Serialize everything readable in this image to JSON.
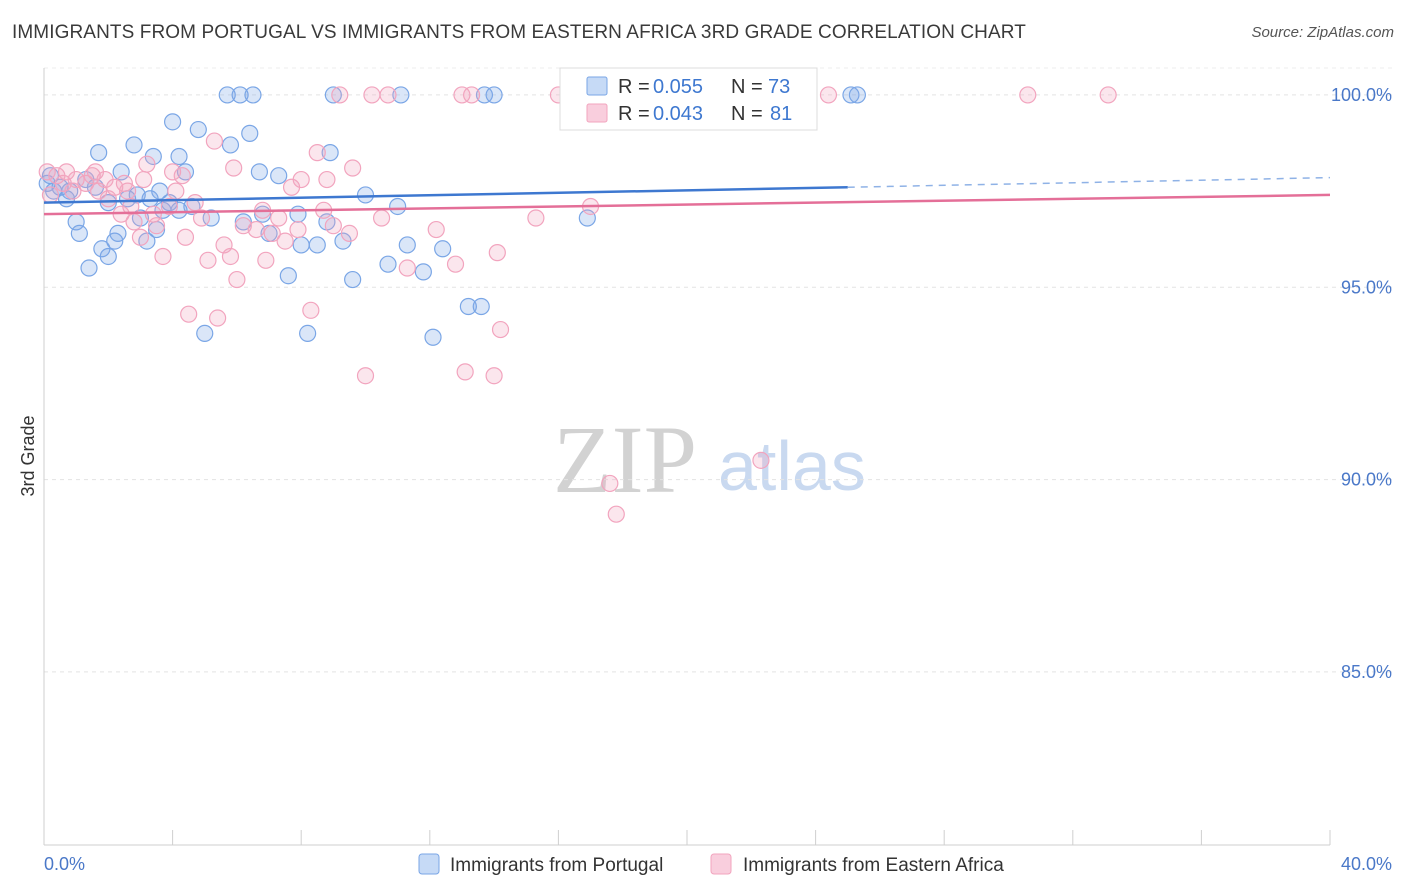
{
  "title": "IMMIGRANTS FROM PORTUGAL VS IMMIGRANTS FROM EASTERN AFRICA 3RD GRADE CORRELATION CHART",
  "source": "Source: ZipAtlas.com",
  "watermark": {
    "zip": "ZIP",
    "atlas": "atlas"
  },
  "legend": {
    "r_label": "R =",
    "n_label": "N =",
    "items": [
      {
        "name": "Immigrants from Portugal",
        "r": "0.055",
        "n": "73",
        "color": "#7aa6e6",
        "line_color": "#3e78d0"
      },
      {
        "name": "Immigrants from Eastern Africa",
        "r": "0.043",
        "n": "81",
        "color": "#f2a4be",
        "line_color": "#e46f98"
      }
    ]
  },
  "chart_data": {
    "type": "scatter",
    "title": "IMMIGRANTS FROM PORTUGAL VS IMMIGRANTS FROM EASTERN AFRICA 3RD GRADE CORRELATION CHART",
    "xlabel": "",
    "ylabel": "3rd Grade",
    "xlim": [
      0,
      40
    ],
    "ylim": [
      80.5,
      100.7
    ],
    "x_tick_labels": [
      "0.0%",
      "40.0%"
    ],
    "y_ticks": [
      85,
      90,
      95,
      100
    ],
    "y_tick_labels": [
      "85.0%",
      "90.0%",
      "95.0%",
      "100.0%"
    ],
    "grid": true,
    "series": [
      {
        "name": "Immigrants from Portugal",
        "color": "#7aa6e6",
        "trend": {
          "x0": 0,
          "y0": 97.2,
          "x1": 25,
          "y1": 97.6,
          "dashed_to_x": 40,
          "dashed_to_y": 97.85
        },
        "points": [
          [
            0.1,
            97.7
          ],
          [
            0.2,
            97.9
          ],
          [
            0.3,
            97.5
          ],
          [
            0.5,
            97.6
          ],
          [
            0.7,
            97.3
          ],
          [
            0.8,
            97.5
          ],
          [
            1.0,
            96.7
          ],
          [
            1.1,
            96.4
          ],
          [
            1.3,
            97.8
          ],
          [
            1.4,
            95.5
          ],
          [
            1.6,
            97.6
          ],
          [
            1.7,
            98.5
          ],
          [
            1.8,
            96.0
          ],
          [
            2.0,
            97.2
          ],
          [
            2.0,
            95.8
          ],
          [
            2.2,
            96.2
          ],
          [
            2.3,
            96.4
          ],
          [
            2.4,
            98.0
          ],
          [
            2.6,
            97.3
          ],
          [
            2.8,
            98.7
          ],
          [
            2.9,
            97.4
          ],
          [
            3.0,
            96.8
          ],
          [
            3.2,
            96.2
          ],
          [
            3.3,
            97.3
          ],
          [
            3.4,
            98.4
          ],
          [
            3.5,
            96.5
          ],
          [
            3.6,
            97.5
          ],
          [
            3.7,
            97.0
          ],
          [
            3.9,
            97.2
          ],
          [
            4.0,
            99.3
          ],
          [
            4.2,
            97.0
          ],
          [
            4.2,
            98.4
          ],
          [
            4.4,
            98.0
          ],
          [
            4.6,
            97.1
          ],
          [
            4.8,
            99.1
          ],
          [
            5.0,
            93.8
          ],
          [
            5.2,
            96.8
          ],
          [
            5.7,
            100.0
          ],
          [
            5.8,
            98.7
          ],
          [
            6.1,
            100.0
          ],
          [
            6.2,
            96.7
          ],
          [
            6.4,
            99.0
          ],
          [
            6.5,
            100.0
          ],
          [
            6.7,
            98.0
          ],
          [
            6.8,
            96.9
          ],
          [
            7.0,
            96.4
          ],
          [
            7.3,
            97.9
          ],
          [
            7.6,
            95.3
          ],
          [
            7.9,
            96.9
          ],
          [
            8.0,
            96.1
          ],
          [
            8.2,
            93.8
          ],
          [
            8.5,
            96.1
          ],
          [
            8.8,
            96.7
          ],
          [
            8.9,
            98.5
          ],
          [
            9.0,
            100.0
          ],
          [
            9.3,
            96.2
          ],
          [
            9.6,
            95.2
          ],
          [
            10.0,
            97.4
          ],
          [
            10.7,
            95.6
          ],
          [
            11.0,
            97.1
          ],
          [
            11.1,
            100.0
          ],
          [
            11.3,
            96.1
          ],
          [
            11.8,
            95.4
          ],
          [
            12.1,
            93.7
          ],
          [
            12.4,
            96.0
          ],
          [
            13.2,
            94.5
          ],
          [
            13.6,
            94.5
          ],
          [
            13.7,
            100.0
          ],
          [
            14.0,
            100.0
          ],
          [
            16.8,
            100.0
          ],
          [
            16.9,
            96.8
          ],
          [
            25.1,
            100.0
          ],
          [
            25.3,
            100.0
          ]
        ]
      },
      {
        "name": "Immigrants from Eastern Africa",
        "color": "#f2a4be",
        "trend": {
          "x0": 0,
          "y0": 96.9,
          "x1": 40,
          "y1": 97.4
        },
        "points": [
          [
            0.1,
            98.0
          ],
          [
            0.2,
            97.4
          ],
          [
            0.4,
            97.9
          ],
          [
            0.6,
            97.7
          ],
          [
            0.7,
            98.0
          ],
          [
            0.9,
            97.5
          ],
          [
            1.0,
            97.8
          ],
          [
            1.3,
            97.7
          ],
          [
            1.5,
            97.9
          ],
          [
            1.6,
            98.0
          ],
          [
            1.7,
            97.5
          ],
          [
            1.9,
            97.8
          ],
          [
            2.0,
            97.3
          ],
          [
            2.2,
            97.6
          ],
          [
            2.4,
            96.9
          ],
          [
            2.5,
            97.7
          ],
          [
            2.6,
            97.5
          ],
          [
            2.7,
            97.1
          ],
          [
            2.8,
            96.7
          ],
          [
            3.0,
            96.3
          ],
          [
            3.1,
            97.8
          ],
          [
            3.2,
            98.2
          ],
          [
            3.4,
            96.9
          ],
          [
            3.5,
            96.6
          ],
          [
            3.7,
            95.8
          ],
          [
            3.9,
            97.1
          ],
          [
            4.0,
            98.0
          ],
          [
            4.1,
            97.5
          ],
          [
            4.3,
            97.9
          ],
          [
            4.4,
            96.3
          ],
          [
            4.5,
            94.3
          ],
          [
            4.7,
            97.2
          ],
          [
            4.9,
            96.8
          ],
          [
            5.1,
            95.7
          ],
          [
            5.3,
            98.8
          ],
          [
            5.4,
            94.2
          ],
          [
            5.6,
            96.1
          ],
          [
            5.8,
            95.8
          ],
          [
            5.9,
            98.1
          ],
          [
            6.0,
            95.2
          ],
          [
            6.2,
            96.6
          ],
          [
            6.6,
            96.5
          ],
          [
            6.8,
            97.0
          ],
          [
            6.9,
            95.7
          ],
          [
            7.1,
            96.4
          ],
          [
            7.3,
            96.8
          ],
          [
            7.5,
            96.2
          ],
          [
            7.7,
            97.6
          ],
          [
            7.9,
            96.5
          ],
          [
            8.0,
            97.8
          ],
          [
            8.3,
            94.4
          ],
          [
            8.5,
            98.5
          ],
          [
            8.7,
            97.0
          ],
          [
            8.8,
            97.8
          ],
          [
            9.0,
            96.6
          ],
          [
            9.2,
            100.0
          ],
          [
            9.5,
            96.4
          ],
          [
            9.6,
            98.1
          ],
          [
            10.0,
            92.7
          ],
          [
            10.2,
            100.0
          ],
          [
            10.5,
            96.8
          ],
          [
            10.7,
            100.0
          ],
          [
            11.3,
            95.5
          ],
          [
            12.2,
            96.5
          ],
          [
            12.8,
            95.6
          ],
          [
            13.0,
            100.0
          ],
          [
            13.1,
            92.8
          ],
          [
            13.3,
            100.0
          ],
          [
            14.0,
            92.7
          ],
          [
            14.1,
            95.9
          ],
          [
            14.2,
            93.9
          ],
          [
            15.3,
            96.8
          ],
          [
            16.0,
            100.0
          ],
          [
            17.0,
            97.1
          ],
          [
            17.6,
            89.9
          ],
          [
            17.8,
            89.1
          ],
          [
            22.3,
            90.5
          ],
          [
            23.1,
            100.0
          ],
          [
            24.4,
            100.0
          ],
          [
            30.6,
            100.0
          ],
          [
            33.1,
            100.0
          ]
        ]
      }
    ]
  }
}
